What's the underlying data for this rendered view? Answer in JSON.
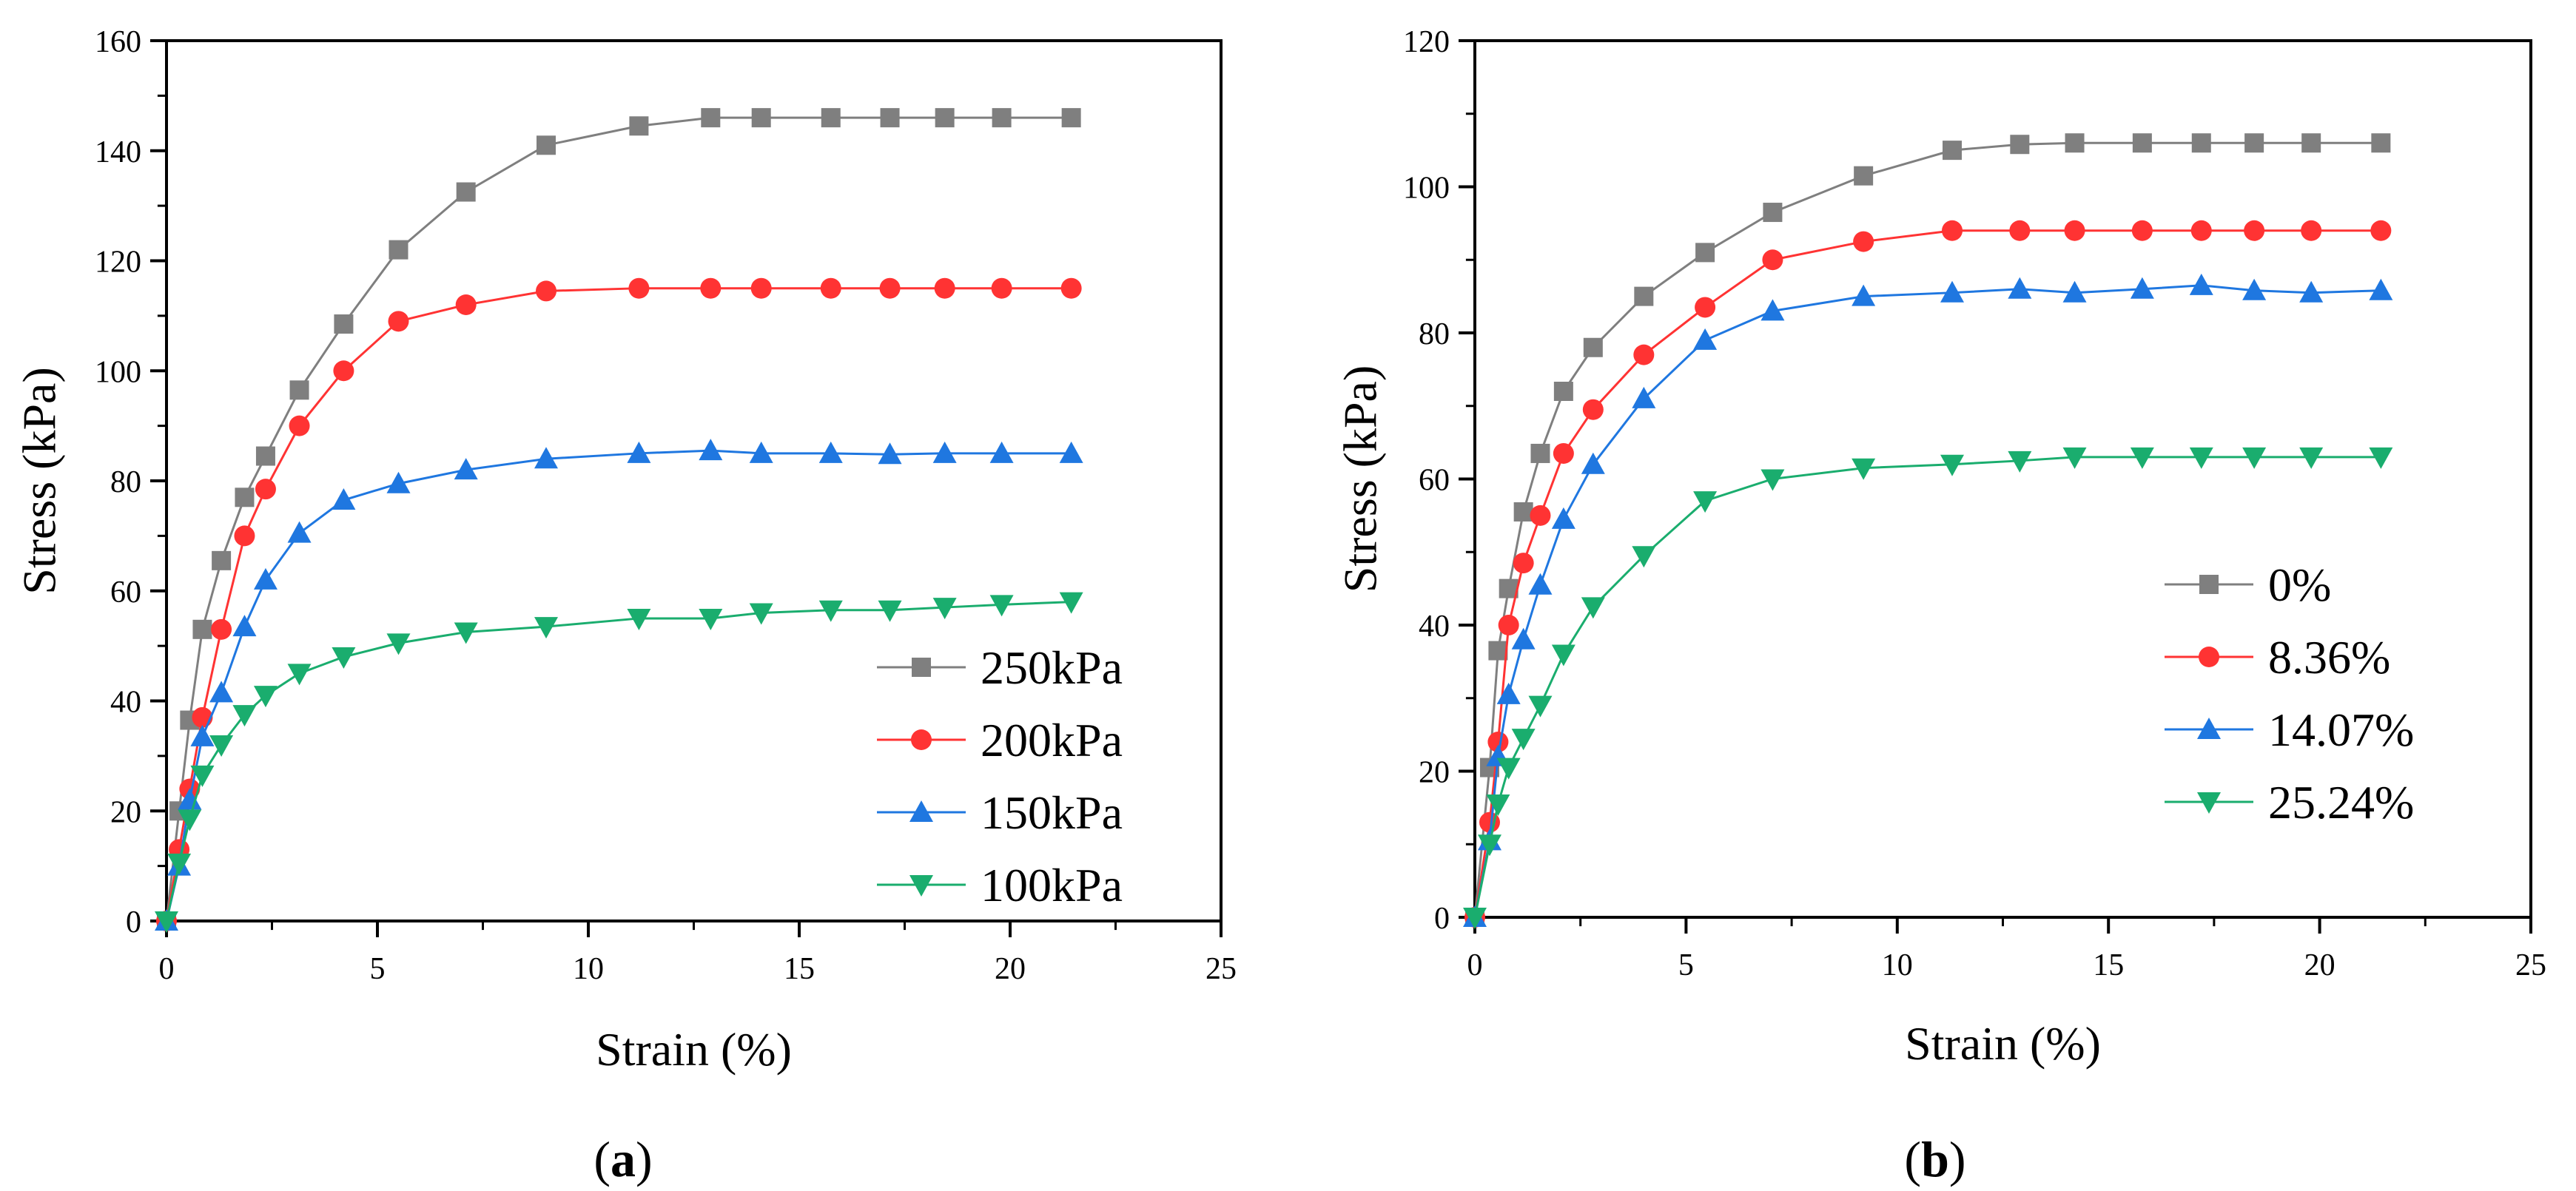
{
  "chart_data": [
    {
      "type": "line",
      "caption": {
        "open": "(",
        "letter": "a",
        "close": ")"
      },
      "xlabel": "Strain (%)",
      "ylabel": "Stress (kPa)",
      "xlim": [
        0,
        25
      ],
      "ylim": [
        0,
        160
      ],
      "xticks": [
        "0",
        "5",
        "10",
        "15",
        "20",
        "25"
      ],
      "yticks": [
        "0",
        "20",
        "40",
        "60",
        "80",
        "100",
        "120",
        "140",
        "160"
      ],
      "grid": false,
      "legend_position": "bottom-right",
      "series": [
        {
          "name": "250kPa",
          "color": "#7f7f7f",
          "marker": "square",
          "x": [
            0,
            0.3,
            0.55,
            0.85,
            1.3,
            1.85,
            2.35,
            3.15,
            4.2,
            5.5,
            7.1,
            9.0,
            11.2,
            12.9,
            14.1,
            15.75,
            17.15,
            18.45,
            19.8,
            21.45
          ],
          "y": [
            0,
            20,
            36.5,
            53,
            65.5,
            77,
            84.5,
            96.5,
            108.5,
            122,
            132.5,
            141,
            144.5,
            146,
            146,
            146,
            146,
            146,
            146,
            146
          ]
        },
        {
          "name": "200kPa",
          "color": "#ff3333",
          "marker": "circle",
          "x": [
            0,
            0.3,
            0.55,
            0.85,
            1.3,
            1.85,
            2.35,
            3.15,
            4.2,
            5.5,
            7.1,
            9.0,
            11.2,
            12.9,
            14.1,
            15.75,
            17.15,
            18.45,
            19.8,
            21.45
          ],
          "y": [
            0,
            13,
            24,
            37,
            53,
            70,
            78.5,
            90,
            100,
            109,
            112,
            114.5,
            115,
            115,
            115,
            115,
            115,
            115,
            115,
            115
          ]
        },
        {
          "name": "150kPa",
          "color": "#1f77e0",
          "marker": "triangle-up",
          "x": [
            0,
            0.3,
            0.55,
            0.85,
            1.3,
            1.85,
            2.35,
            3.15,
            4.2,
            5.5,
            7.1,
            9.0,
            11.2,
            12.9,
            14.1,
            15.75,
            17.15,
            18.45,
            19.8,
            21.45
          ],
          "y": [
            0,
            10,
            22,
            33.5,
            41.5,
            53.5,
            62,
            70.5,
            76.5,
            79.5,
            82,
            84,
            85,
            85.5,
            85,
            85,
            84.8,
            85,
            85,
            85
          ]
        },
        {
          "name": "100kPa",
          "color": "#1aad6e",
          "marker": "triangle-down",
          "x": [
            0,
            0.3,
            0.55,
            0.85,
            1.3,
            1.85,
            2.35,
            3.15,
            4.2,
            5.5,
            7.1,
            9.0,
            11.2,
            12.9,
            14.1,
            15.75,
            17.15,
            18.45,
            19.8,
            21.45
          ],
          "y": [
            0,
            10.5,
            18.5,
            26.5,
            32,
            37.5,
            41,
            45,
            48,
            50.5,
            52.5,
            53.5,
            55,
            55,
            56,
            56.5,
            56.5,
            57,
            57.5,
            58
          ]
        }
      ]
    },
    {
      "type": "line",
      "caption": {
        "open": "(",
        "letter": "b",
        "close": ")"
      },
      "xlabel": "Strain (%)",
      "ylabel": "Stress (kPa)",
      "xlim": [
        0,
        25
      ],
      "ylim": [
        0,
        120
      ],
      "xticks": [
        "0",
        "5",
        "10",
        "15",
        "20",
        "25"
      ],
      "yticks": [
        "0",
        "20",
        "40",
        "60",
        "80",
        "100",
        "120"
      ],
      "grid": false,
      "legend_position": "bottom-right",
      "series": [
        {
          "name": "0%",
          "color": "#7f7f7f",
          "marker": "square",
          "x": [
            0,
            0.35,
            0.55,
            0.8,
            1.15,
            1.55,
            2.1,
            2.8,
            4.0,
            5.45,
            7.05,
            9.2,
            11.3,
            12.9,
            14.2,
            15.8,
            17.2,
            18.45,
            19.8,
            21.45
          ],
          "y": [
            0,
            20.5,
            36.5,
            45,
            55.5,
            63.5,
            72,
            78,
            85,
            91,
            96.5,
            101.5,
            105,
            105.8,
            106,
            106,
            106,
            106,
            106,
            106
          ]
        },
        {
          "name": "8.36%",
          "color": "#ff3333",
          "marker": "circle",
          "x": [
            0,
            0.35,
            0.55,
            0.8,
            1.15,
            1.55,
            2.1,
            2.8,
            4.0,
            5.45,
            7.05,
            9.2,
            11.3,
            12.9,
            14.2,
            15.8,
            17.2,
            18.45,
            19.8,
            21.45
          ],
          "y": [
            0,
            13,
            24,
            40,
            48.5,
            55,
            63.5,
            69.5,
            77,
            83.5,
            90,
            92.5,
            94,
            94,
            94,
            94,
            94,
            94,
            94,
            94
          ]
        },
        {
          "name": "14.07%",
          "color": "#1f77e0",
          "marker": "triangle-up",
          "x": [
            0,
            0.35,
            0.55,
            0.8,
            1.15,
            1.55,
            2.1,
            2.8,
            4.0,
            5.45,
            7.05,
            9.2,
            11.3,
            12.9,
            14.2,
            15.8,
            17.2,
            18.45,
            19.8,
            21.45
          ],
          "y": [
            0,
            10.5,
            22,
            30.5,
            38,
            45.5,
            54.5,
            62,
            71,
            79,
            83,
            85,
            85.5,
            86,
            85.5,
            86,
            86.5,
            85.8,
            85.5,
            85.8
          ]
        },
        {
          "name": "25.24%",
          "color": "#1aad6e",
          "marker": "triangle-down",
          "x": [
            0,
            0.35,
            0.55,
            0.8,
            1.15,
            1.55,
            2.1,
            2.8,
            4.0,
            5.45,
            7.05,
            9.2,
            11.3,
            12.9,
            14.2,
            15.8,
            17.2,
            18.45,
            19.8,
            21.45
          ],
          "y": [
            0,
            10,
            15.5,
            20.5,
            24.5,
            29,
            36,
            42.5,
            49.5,
            57,
            60,
            61.5,
            62,
            62.5,
            63,
            63,
            63,
            63,
            63,
            63
          ]
        }
      ]
    }
  ]
}
